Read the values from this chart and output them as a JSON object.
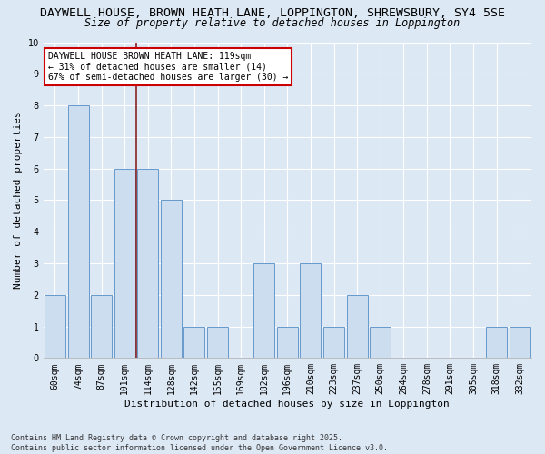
{
  "title_line1": "DAYWELL HOUSE, BROWN HEATH LANE, LOPPINGTON, SHREWSBURY, SY4 5SE",
  "title_line2": "Size of property relative to detached houses in Loppington",
  "xlabel": "Distribution of detached houses by size in Loppington",
  "ylabel": "Number of detached properties",
  "footnote": "Contains HM Land Registry data © Crown copyright and database right 2025.\nContains public sector information licensed under the Open Government Licence v3.0.",
  "categories": [
    "60sqm",
    "74sqm",
    "87sqm",
    "101sqm",
    "114sqm",
    "128sqm",
    "142sqm",
    "155sqm",
    "169sqm",
    "182sqm",
    "196sqm",
    "210sqm",
    "223sqm",
    "237sqm",
    "250sqm",
    "264sqm",
    "278sqm",
    "291sqm",
    "305sqm",
    "318sqm",
    "332sqm"
  ],
  "values": [
    2,
    8,
    2,
    6,
    6,
    5,
    1,
    1,
    0,
    3,
    1,
    3,
    1,
    2,
    1,
    0,
    0,
    0,
    0,
    1,
    1
  ],
  "bar_color": "#ccddf0",
  "bar_edge_color": "#6699cc",
  "vline_x": 3.5,
  "vline_color": "#882222",
  "annotation_text": "DAYWELL HOUSE BROWN HEATH LANE: 119sqm\n← 31% of detached houses are smaller (14)\n67% of semi-detached houses are larger (30) →",
  "annotation_box_color": "#ffffff",
  "annotation_box_edge": "#cc0000",
  "ylim": [
    0,
    10
  ],
  "yticks": [
    0,
    1,
    2,
    3,
    4,
    5,
    6,
    7,
    8,
    9,
    10
  ],
  "bg_color": "#dde8f5",
  "grid_color": "#ffffff",
  "title_fontsize": 9.5,
  "subtitle_fontsize": 8.5,
  "axis_label_fontsize": 8,
  "tick_fontsize": 7,
  "footnote_fontsize": 6
}
